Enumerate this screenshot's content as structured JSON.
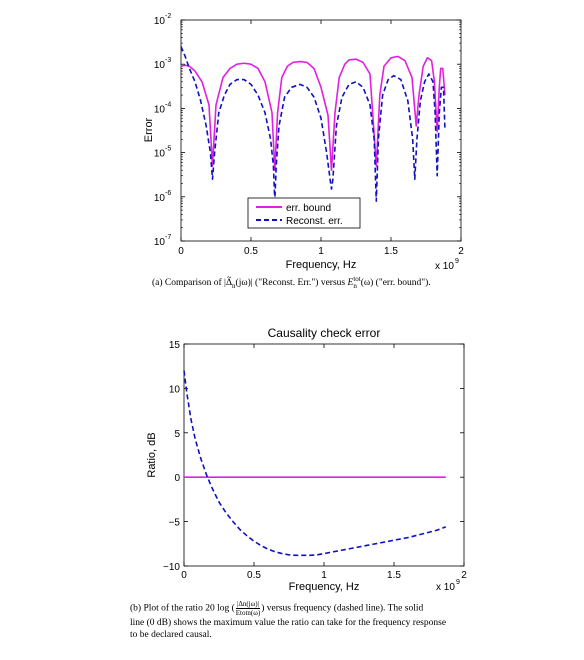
{
  "chart_data": [
    {
      "type": "line",
      "title": "",
      "xlabel": "Frequency, Hz",
      "ylabel": "Error",
      "x_multiplier": "x 10",
      "x_multiplier_exp": "9",
      "x_ticks": [
        "0",
        "0.5",
        "1",
        "1.5",
        "2"
      ],
      "x_tick_values": [
        0,
        0.5,
        1,
        1.5,
        2
      ],
      "y_scale": "log",
      "y_tick_exps": [
        "-7",
        "-6",
        "-5",
        "-4",
        "-3",
        "-2"
      ],
      "xlim": [
        0,
        2
      ],
      "ylim": [
        1e-07,
        0.01
      ],
      "legend_position": "lower-center",
      "series": [
        {
          "name": "err. bound",
          "color": "#e020e0",
          "style": "solid",
          "x": [
            0,
            0.03,
            0.06,
            0.1,
            0.15,
            0.2,
            0.225,
            0.25,
            0.3,
            0.35,
            0.4,
            0.45,
            0.5,
            0.55,
            0.6,
            0.65,
            0.67,
            0.69,
            0.72,
            0.76,
            0.8,
            0.85,
            0.9,
            0.95,
            1.0,
            1.05,
            1.075,
            1.1,
            1.13,
            1.17,
            1.2,
            1.25,
            1.3,
            1.35,
            1.395,
            1.42,
            1.45,
            1.5,
            1.55,
            1.6,
            1.65,
            1.68,
            1.7,
            1.73,
            1.76,
            1.79,
            1.81,
            1.83,
            1.845,
            1.855,
            1.87,
            1.885
          ],
          "y": [
            0.0009,
            0.00095,
            0.0009,
            0.0007,
            0.0004,
            0.00012,
            5e-06,
            0.00012,
            0.0005,
            0.0008,
            0.001,
            0.00105,
            0.001,
            0.0008,
            0.0004,
            8e-05,
            4e-06,
            8e-05,
            0.0005,
            0.0009,
            0.0011,
            0.00115,
            0.0011,
            0.0008,
            0.0003,
            7e-05,
            4e-06,
            8e-05,
            0.0005,
            0.001,
            0.00125,
            0.0013,
            0.0011,
            0.0006,
            5e-06,
            0.0002,
            0.0009,
            0.0014,
            0.0015,
            0.0012,
            0.0005,
            4e-05,
            0.0002,
            0.0009,
            0.0014,
            0.0012,
            0.0004,
            3e-05,
            0.0003,
            0.0008,
            0.0008,
            0.0002
          ]
        },
        {
          "name": "Reconst. err.",
          "color": "#1010c0",
          "style": "dashed",
          "x": [
            0,
            0.03,
            0.06,
            0.1,
            0.14,
            0.18,
            0.21,
            0.225,
            0.24,
            0.27,
            0.31,
            0.35,
            0.4,
            0.45,
            0.5,
            0.55,
            0.6,
            0.64,
            0.66,
            0.67,
            0.68,
            0.7,
            0.74,
            0.79,
            0.85,
            0.9,
            0.95,
            1.0,
            1.04,
            1.065,
            1.075,
            1.085,
            1.11,
            1.15,
            1.2,
            1.25,
            1.3,
            1.35,
            1.38,
            1.395,
            1.41,
            1.44,
            1.48,
            1.52,
            1.57,
            1.62,
            1.655,
            1.67,
            1.685,
            1.71,
            1.74,
            1.77,
            1.8,
            1.815,
            1.83,
            1.845,
            1.86,
            1.875,
            1.885
          ],
          "y": [
            0.0025,
            0.0015,
            0.0008,
            0.0004,
            0.00015,
            4e-05,
            1e-05,
            2.5e-06,
            1e-05,
            8e-05,
            0.0002,
            0.00035,
            0.00045,
            0.00045,
            0.00035,
            0.0002,
            8e-05,
            2e-05,
            5e-06,
            8e-07,
            5e-06,
            4e-05,
            0.00018,
            0.0003,
            0.00035,
            0.0003,
            0.00018,
            6e-05,
            1e-05,
            2.5e-06,
            1.5e-06,
            2.5e-06,
            4e-05,
            0.00018,
            0.00035,
            0.0004,
            0.0003,
            0.00012,
            2e-05,
            8e-07,
            2e-05,
            0.0002,
            0.00045,
            0.00055,
            0.00045,
            0.00015,
            2e-05,
            2.5e-06,
            2e-05,
            0.00015,
            0.0004,
            0.0006,
            0.0004,
            8e-05,
            3e-06,
            8e-05,
            0.0003,
            0.0003,
            3.5e-05
          ]
        }
      ],
      "caption_parts": [
        "(a) Comparison of |",
        "Δ",
        "n",
        "(jω)| (\"Reconst. Err.\") versus ",
        "E",
        "tot",
        "n",
        "(ω) (\"err. bound\")."
      ]
    },
    {
      "type": "line",
      "title": "Causality check error",
      "xlabel": "Frequency, Hz",
      "ylabel": "Ratio, dB",
      "x_multiplier": "x 10",
      "x_multiplier_exp": "9",
      "x_ticks": [
        "0",
        "0.5",
        "1",
        "1.5",
        "2"
      ],
      "x_tick_values": [
        0,
        0.5,
        1,
        1.5,
        2
      ],
      "y_ticks": [
        "15",
        "10",
        "5",
        "0",
        "−5",
        "−10"
      ],
      "y_tick_values": [
        15,
        10,
        5,
        0,
        -5,
        -10
      ],
      "xlim": [
        0,
        2
      ],
      "ylim": [
        -10,
        15
      ],
      "series": [
        {
          "color": "#e020e0",
          "style": "solid",
          "x": [
            0,
            1.87
          ],
          "y": [
            0,
            0
          ]
        },
        {
          "color": "#1010c0",
          "style": "dashed",
          "x": [
            0,
            0.02,
            0.05,
            0.08,
            0.12,
            0.16,
            0.2,
            0.25,
            0.3,
            0.35,
            0.4,
            0.45,
            0.5,
            0.55,
            0.6,
            0.65,
            0.7,
            0.75,
            0.8,
            0.85,
            0.9,
            0.95,
            1.0,
            1.1,
            1.2,
            1.3,
            1.4,
            1.5,
            1.6,
            1.7,
            1.8,
            1.87
          ],
          "y": [
            12,
            9.5,
            6.5,
            4.3,
            2.1,
            0.3,
            -1.2,
            -2.8,
            -4.0,
            -5.0,
            -5.9,
            -6.6,
            -7.2,
            -7.7,
            -8.1,
            -8.4,
            -8.6,
            -8.75,
            -8.8,
            -8.8,
            -8.8,
            -8.75,
            -8.6,
            -8.3,
            -8.0,
            -7.7,
            -7.4,
            -7.1,
            -6.8,
            -6.4,
            -6.0,
            -5.6
          ]
        }
      ],
      "caption_parts": [
        "(b) Plot of the ratio 20 log (",
        "|Δn(jω)|",
        "Etotn(ω)",
        ") versus frequency (dashed line). The solid",
        "line (0 dB) shows the maximum value the ratio can take for the frequency response",
        "to be declared causal."
      ]
    }
  ]
}
